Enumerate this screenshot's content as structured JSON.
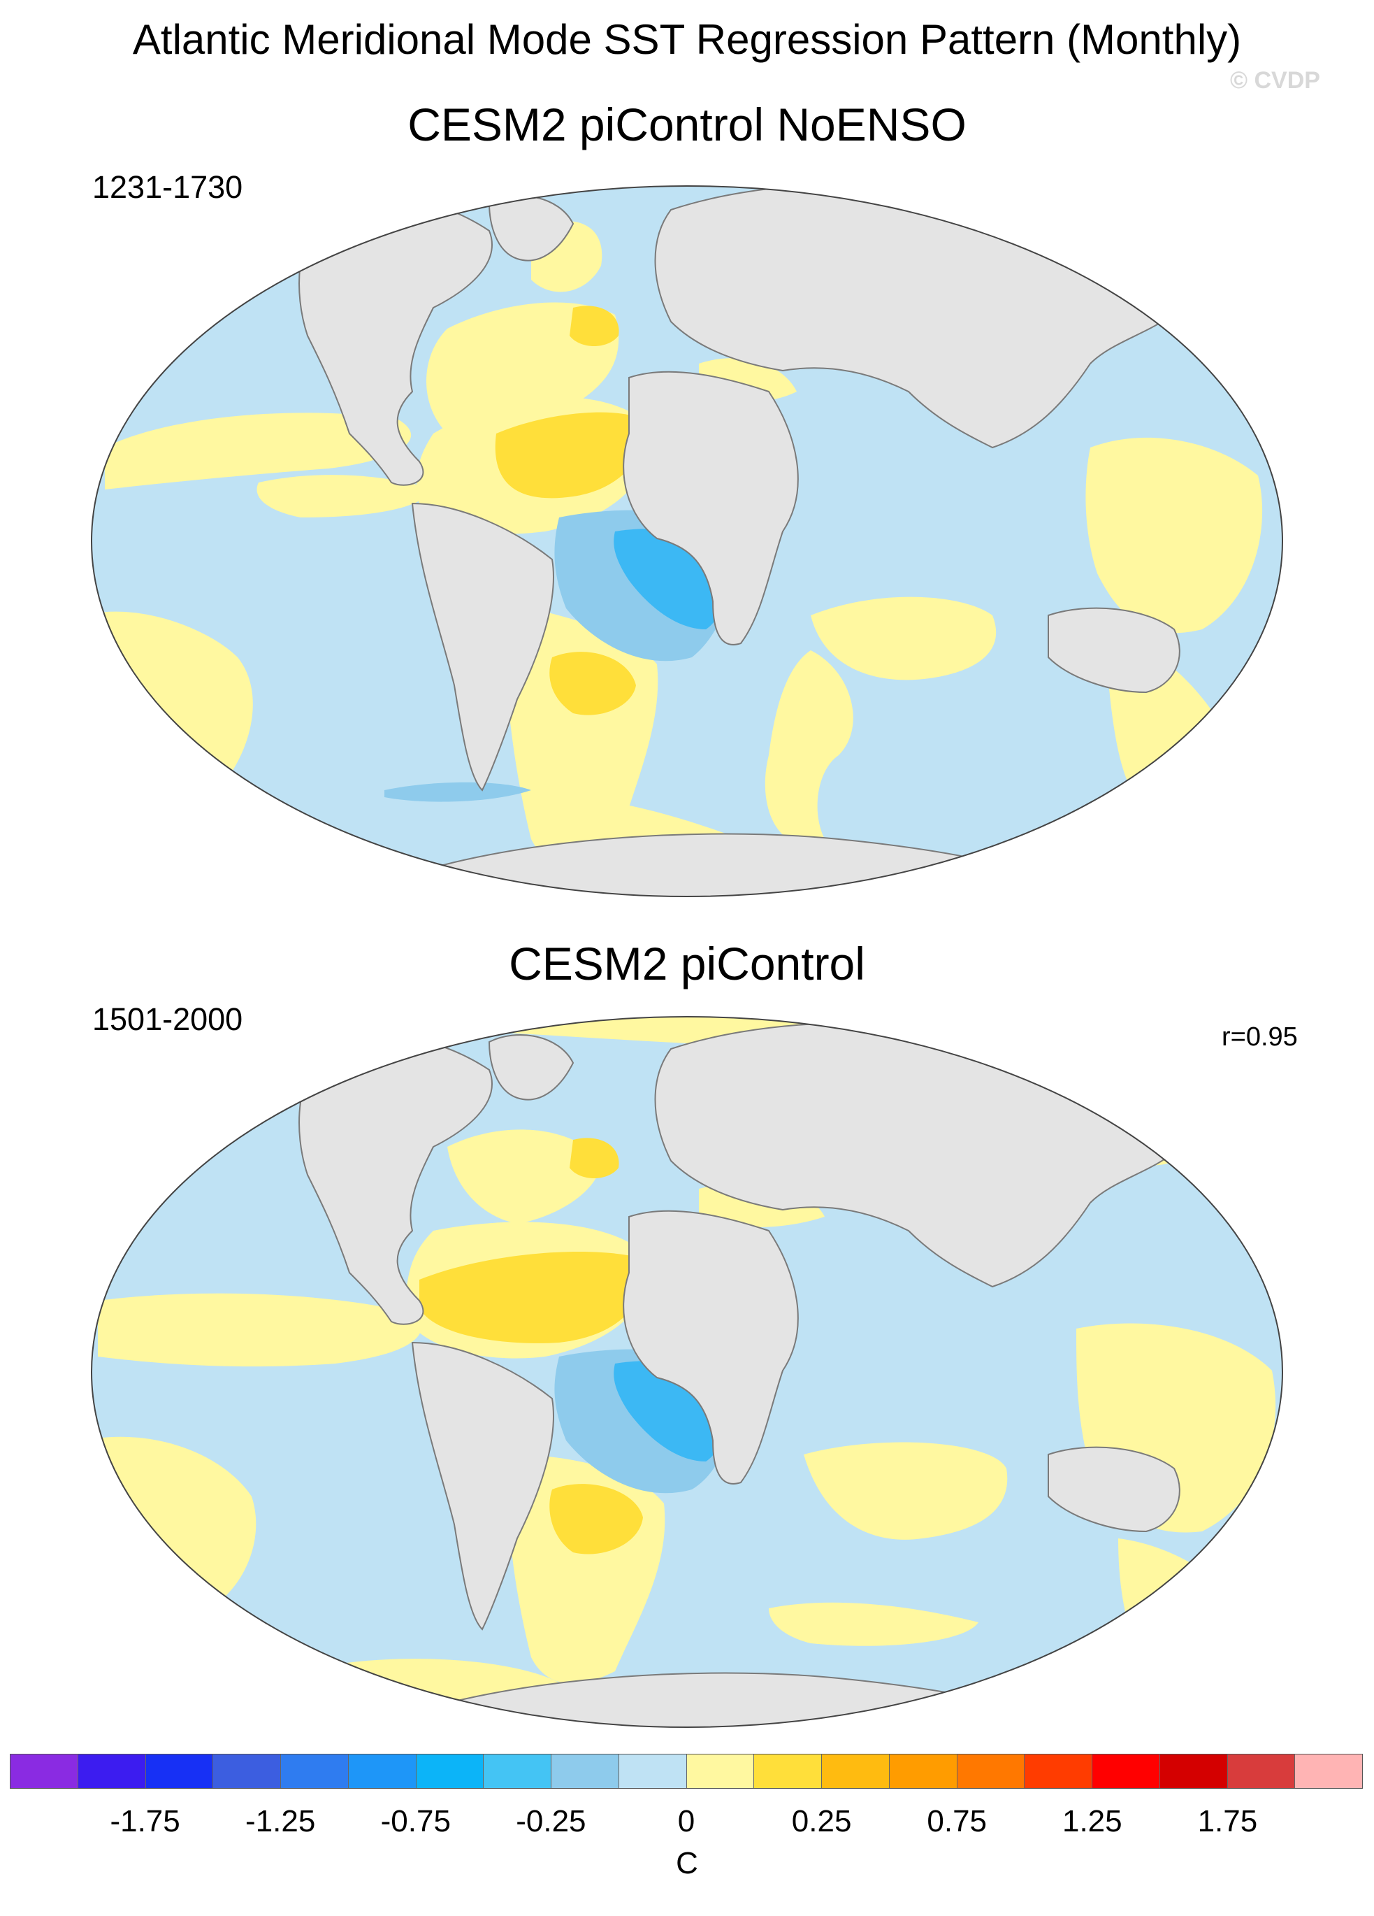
{
  "title": "Atlantic Meridional Mode SST Regression Pattern (Monthly)",
  "watermark": "© CVDP",
  "panels": [
    {
      "title": "CESM2 piControl NoENSO",
      "period": "1231-1730",
      "correlation": ""
    },
    {
      "title": "CESM2 piControl",
      "period": "1501-2000",
      "correlation": "r=0.95"
    }
  ],
  "colors": {
    "land": "#e4e4e4",
    "ocean_weak_negative": "#bfe2f4",
    "weak_positive": "#fff8a0",
    "moderate_positive": "#ffdf3a",
    "moderate_negative": "#8ecbec",
    "strong_negative": "#3cb8f4",
    "coast": "#7a7a7a"
  },
  "colorbar": {
    "units": "C",
    "colors": [
      "#8a2be2",
      "#3c1cf0",
      "#1730f5",
      "#3c5ee0",
      "#2f7cf0",
      "#1e96f8",
      "#0cb4f8",
      "#44c4f4",
      "#8ecbec",
      "#bfe2f4",
      "#fff8a0",
      "#ffdf3a",
      "#ffbb10",
      "#ff9c00",
      "#ff7800",
      "#ff3c00",
      "#ff0000",
      "#d40000",
      "#d83c3c",
      "#ffb4b4"
    ],
    "tick_labels": [
      "-1.75",
      "-1.25",
      "-0.75",
      "-0.25",
      "0",
      "0.25",
      "0.75",
      "1.25",
      "1.75"
    ],
    "tick_boundaries": [
      2,
      4,
      6,
      8,
      10,
      12,
      14,
      16,
      18
    ]
  }
}
